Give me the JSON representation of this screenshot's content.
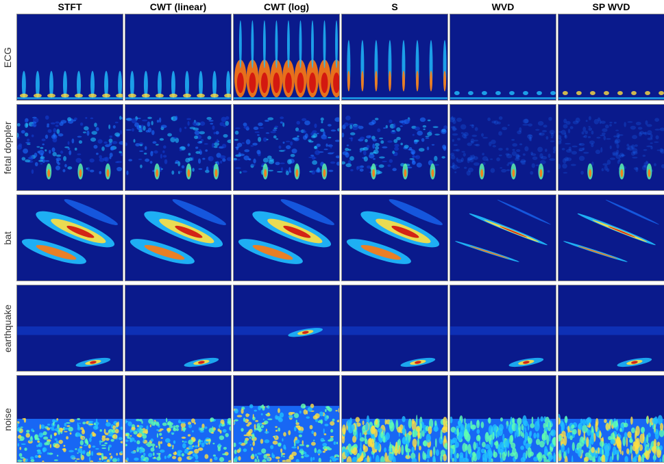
{
  "columns": [
    "STFT",
    "CWT (linear)",
    "CWT (log)",
    "S",
    "WVD",
    "SP WVD"
  ],
  "rows": [
    "ECG",
    "fetal doppler",
    "bat",
    "earthquake",
    "noise"
  ],
  "colors": {
    "background": "#0a1a8c",
    "low": "#1040d0",
    "mid": "#20c0ff",
    "high": "#ffe040",
    "peak": "#d01010"
  }
}
